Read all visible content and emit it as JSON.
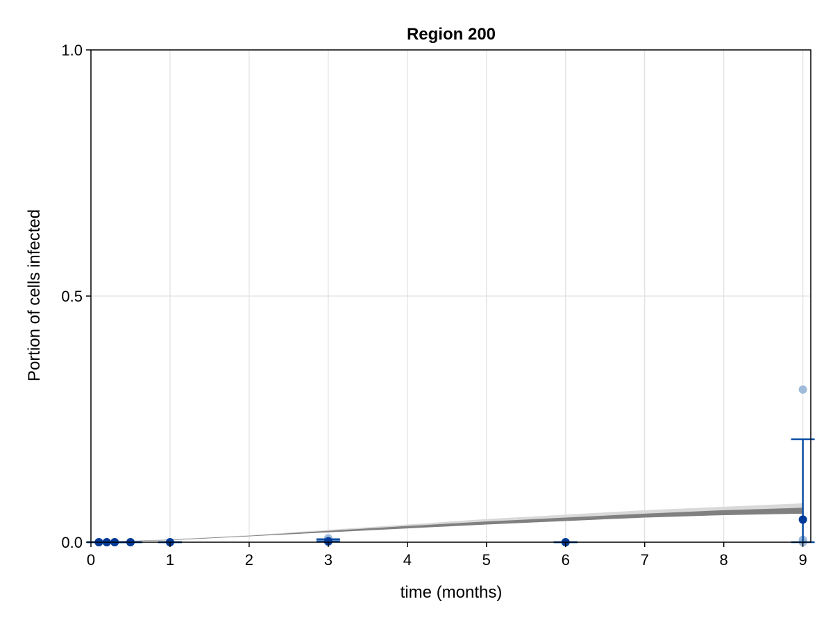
{
  "chart_data": {
    "type": "scatter",
    "title": "Region 200",
    "xlabel": "time (months)",
    "ylabel": "Portion of cells infected",
    "xlim": [
      0,
      9.1
    ],
    "ylim": [
      0,
      1.0
    ],
    "x_ticks": [
      "0",
      "1",
      "2",
      "3",
      "4",
      "5",
      "6",
      "7",
      "8",
      "9"
    ],
    "y_ticks": [
      "0.0",
      "0.5",
      "1.0"
    ],
    "grid": true,
    "colors": {
      "light_points": "#8fb0d6",
      "mean_points": "#003a99",
      "error_bars": "#0b4ea2",
      "band_outer": "#d9d9d9",
      "band_inner": "#808080",
      "grid": "#e0e0e0"
    },
    "band": {
      "x": [
        0,
        1,
        2,
        3,
        4,
        5,
        6,
        7,
        8,
        9
      ],
      "outer_lower": [
        0,
        0.004,
        0.012,
        0.02,
        0.028,
        0.036,
        0.043,
        0.05,
        0.055,
        0.058
      ],
      "outer_upper": [
        0,
        0.006,
        0.014,
        0.025,
        0.036,
        0.047,
        0.056,
        0.065,
        0.072,
        0.079
      ],
      "inner_lower": [
        0,
        0.004,
        0.012,
        0.02,
        0.028,
        0.036,
        0.043,
        0.05,
        0.055,
        0.058
      ],
      "inner_upper": [
        0,
        0.005,
        0.013,
        0.023,
        0.033,
        0.042,
        0.05,
        0.058,
        0.065,
        0.07
      ]
    },
    "observations": [
      {
        "x": 0.1,
        "y": 0.0
      },
      {
        "x": 0.2,
        "y": 0.0
      },
      {
        "x": 0.3,
        "y": 0.0
      },
      {
        "x": 0.5,
        "y": 0.0
      },
      {
        "x": 1,
        "y": 0.0
      },
      {
        "x": 3,
        "y": 0.0
      },
      {
        "x": 3,
        "y": 0.008
      },
      {
        "x": 6,
        "y": 0.0
      },
      {
        "x": 9,
        "y": 0.31
      },
      {
        "x": 9,
        "y": 0.005
      },
      {
        "x": 9,
        "y": 0.0
      }
    ],
    "means": [
      {
        "x": 0.1,
        "y": 0.0,
        "err_low": 0.0,
        "err_high": 0.0
      },
      {
        "x": 0.2,
        "y": 0.0,
        "err_low": 0.0,
        "err_high": 0.0
      },
      {
        "x": 0.3,
        "y": 0.0,
        "err_low": 0.0,
        "err_high": 0.0
      },
      {
        "x": 0.5,
        "y": 0.0,
        "err_low": 0.0,
        "err_high": 0.0
      },
      {
        "x": 1,
        "y": 0.0,
        "err_low": 0.0,
        "err_high": 0.0
      },
      {
        "x": 3,
        "y": 0.002,
        "err_low": 0.0,
        "err_high": 0.004
      },
      {
        "x": 6,
        "y": 0.0,
        "err_low": 0.0,
        "err_high": 0.0
      },
      {
        "x": 9,
        "y": 0.046,
        "err_low": 0.046,
        "err_high": 0.163
      }
    ]
  }
}
